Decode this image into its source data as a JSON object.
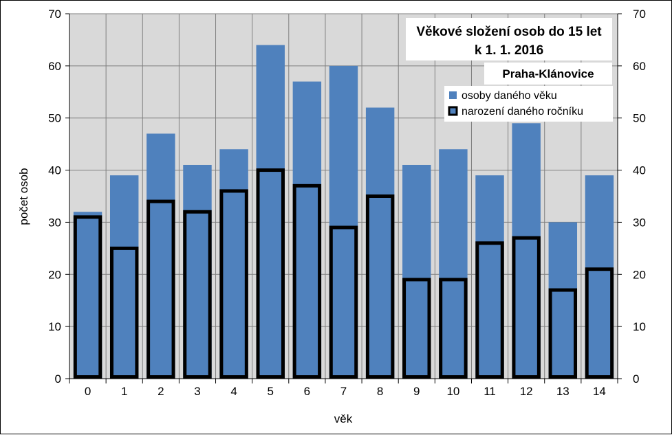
{
  "chart_data": {
    "type": "bar",
    "title_lines": [
      "Věkové složení osob do 15 let",
      "k 1. 1. 2016"
    ],
    "subtitle": "Praha-Klánovice",
    "xlabel": "věk",
    "ylabel": "počet osob",
    "categories": [
      "0",
      "1",
      "2",
      "3",
      "4",
      "5",
      "6",
      "7",
      "8",
      "9",
      "10",
      "11",
      "12",
      "13",
      "14"
    ],
    "ylim": [
      0,
      70
    ],
    "yticks": [
      0,
      10,
      20,
      30,
      40,
      50,
      60,
      70
    ],
    "y_axis_secondary": true,
    "grid": true,
    "legend_position": "top-right",
    "series": [
      {
        "name": "osoby daného věku",
        "style": "filled",
        "color": "#4F81BD",
        "values": [
          32,
          39,
          47,
          41,
          44,
          64,
          57,
          60,
          52,
          41,
          44,
          39,
          49,
          30,
          39
        ]
      },
      {
        "name": "narození daného ročníku",
        "style": "outlined",
        "color": "#4F81BD",
        "outline_color": "#000000",
        "values": [
          31,
          25,
          34,
          32,
          36,
          40,
          37,
          29,
          35,
          19,
          19,
          26,
          27,
          17,
          21
        ]
      }
    ],
    "plot_background": "#D9D9D9",
    "grid_color": "#7F7F7F"
  }
}
